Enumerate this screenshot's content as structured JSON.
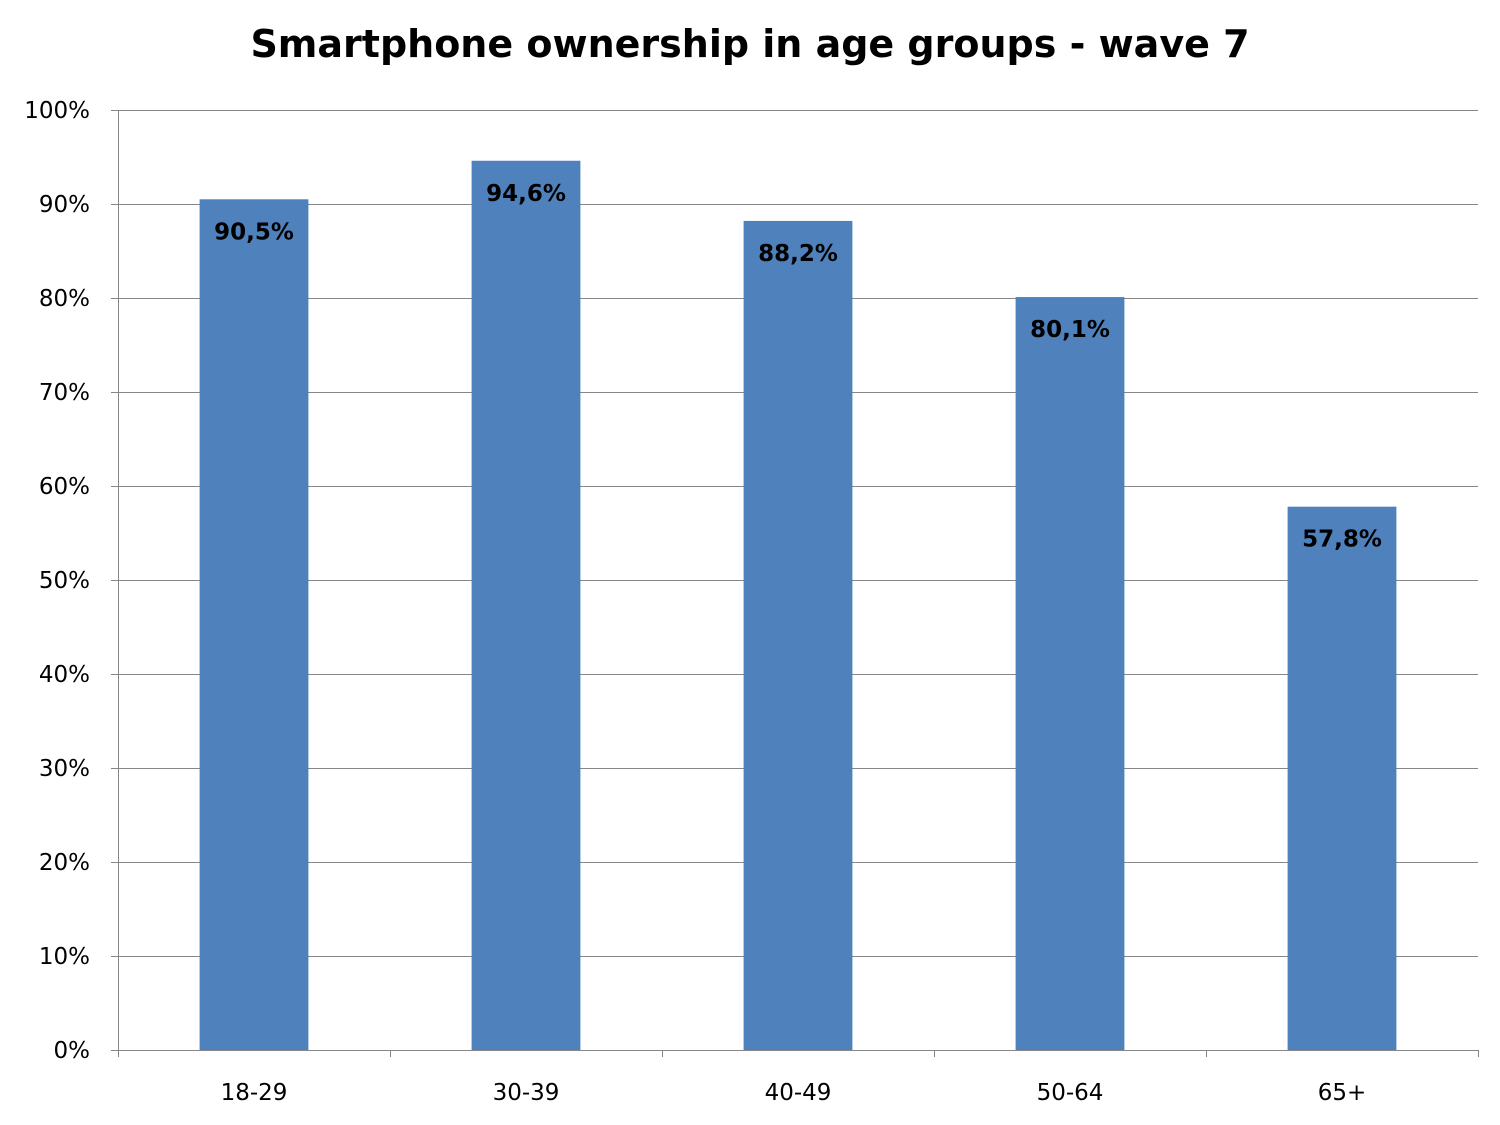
{
  "chart_data": {
    "type": "bar",
    "title": "Smartphone ownership in age groups - wave 7",
    "xlabel": "",
    "ylabel": "",
    "categories": [
      "18-29",
      "30-39",
      "40-49",
      "50-64",
      "65+"
    ],
    "values": [
      90.5,
      94.6,
      88.2,
      80.1,
      57.8
    ],
    "data_labels": [
      "90,5%",
      "94,6%",
      "88,2%",
      "80,1%",
      "57,8%"
    ],
    "ylim": [
      0,
      100
    ],
    "y_ticks": [
      0,
      10,
      20,
      30,
      40,
      50,
      60,
      70,
      80,
      90,
      100
    ],
    "y_tick_labels": [
      "0%",
      "10%",
      "20%",
      "30%",
      "40%",
      "50%",
      "60%",
      "70%",
      "80%",
      "90%",
      "100%"
    ],
    "grid": true,
    "legend": "none",
    "colors": {
      "bar": "#4f81bd",
      "grid": "#868686",
      "axis": "#868686"
    }
  }
}
